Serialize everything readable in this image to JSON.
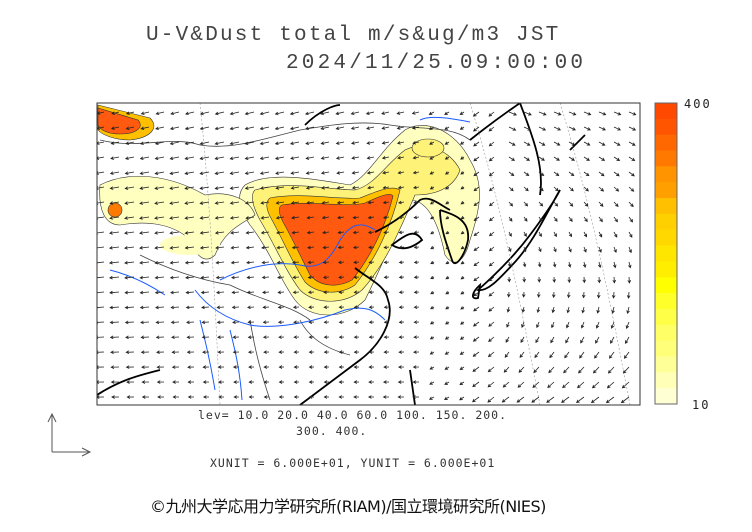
{
  "header": {
    "title": "U-V&Dust total m/s&ug/m3 JST",
    "datetime": "2024/11/25.09:00:00"
  },
  "contour_levels": {
    "line1": "lev= 10.0 20.0 40.0 60.0 100. 150. 200.",
    "line2": "300. 400."
  },
  "vector_units": "XUNIT = 6.000E+01, YUNIT = 6.000E+01",
  "colorbar": {
    "max_label": "400",
    "min_label": "10",
    "colors": [
      "#ff4800",
      "#ff5400",
      "#ff6800",
      "#ff7800",
      "#ff9400",
      "#ffa000",
      "#ffc000",
      "#ffd000",
      "#ffd800",
      "#ffe600",
      "#ffee00",
      "#ffff00",
      "#ffff2a",
      "#ffff48",
      "#ffff66",
      "#ffff7a",
      "#ffff98",
      "#ffffb8",
      "#ffffd4"
    ]
  },
  "credit": "©九州大学応用力学研究所(RIAM)/国立環境研究所(NIES)"
}
